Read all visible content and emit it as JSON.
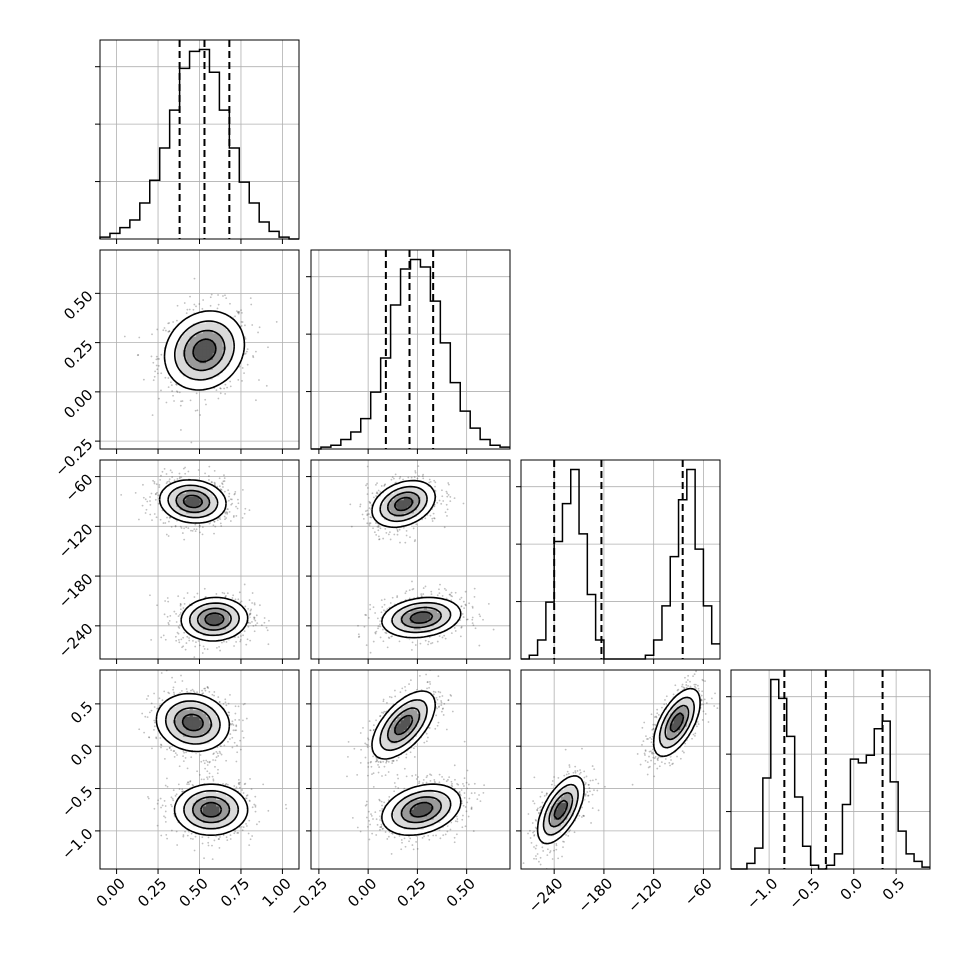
{
  "chart_data": {
    "type": "scatter",
    "title": "",
    "plot_kind": "corner plot (1-D marginal histograms on diagonal, 2-D density contours off-diagonal)",
    "grid": true,
    "parameters": [
      {
        "index": 0,
        "range": [
          -0.1,
          1.1
        ],
        "ticks": [
          0.0,
          0.25,
          0.5,
          0.75,
          1.0
        ],
        "tick_labels": [
          "0.00",
          "0.25",
          "0.50",
          "0.75",
          "1.00"
        ],
        "quantiles": [
          0.38,
          0.53,
          0.68
        ],
        "histogram": [
          1,
          3,
          6,
          10,
          19,
          31,
          48,
          68,
          90,
          99,
          100,
          88,
          68,
          48,
          30,
          19,
          9,
          4,
          1,
          0
        ]
      },
      {
        "index": 1,
        "range": [
          -0.29,
          0.72
        ],
        "ticks": [
          -0.25,
          0.0,
          0.25,
          0.5
        ],
        "tick_labels": [
          "−0.25",
          "0.00",
          "0.25",
          "0.50"
        ],
        "quantiles": [
          0.09,
          0.21,
          0.33
        ],
        "histogram": [
          0,
          1,
          2,
          5,
          9,
          16,
          30,
          48,
          76,
          95,
          100,
          96,
          78,
          56,
          35,
          20,
          11,
          5,
          2,
          1
        ]
      },
      {
        "index": 2,
        "range": [
          -280,
          -40
        ],
        "ticks": [
          -240,
          -180,
          -120,
          -60
        ],
        "tick_labels": [
          "−240",
          "−180",
          "−120",
          "−60"
        ],
        "quantiles": [
          -240,
          -183,
          -85
        ],
        "histogram": [
          0,
          2,
          10,
          30,
          62,
          82,
          100,
          66,
          34,
          10,
          0,
          0,
          0,
          0,
          0,
          2,
          10,
          28,
          54,
          84,
          100,
          58,
          28,
          8
        ]
      },
      {
        "index": 3,
        "range": [
          -1.45,
          0.9
        ],
        "ticks": [
          -1.0,
          -0.5,
          0.0,
          0.5
        ],
        "tick_labels": [
          "−1.0",
          "−0.5",
          "0.0",
          "0.5"
        ],
        "quantiles": [
          -0.82,
          -0.33,
          0.34
        ],
        "histogram": [
          0,
          0,
          3,
          11,
          48,
          100,
          90,
          70,
          38,
          12,
          2,
          0,
          2,
          8,
          34,
          58,
          56,
          60,
          74,
          78,
          46,
          20,
          8,
          4,
          1
        ]
      }
    ],
    "y_axis_ticks": {
      "1": {
        "ticks": [
          -0.25,
          0.0,
          0.25,
          0.5
        ],
        "labels": [
          "−0.25",
          "0.00",
          "0.25",
          "0.50"
        ]
      },
      "2": {
        "ticks": [
          -240,
          -180,
          -120,
          -60
        ],
        "labels": [
          "−240",
          "−180",
          "−120",
          "−60"
        ]
      },
      "3": {
        "ticks": [
          -1.0,
          -0.5,
          0.0,
          0.5
        ],
        "labels": [
          "−1.0",
          "−0.5",
          "0.0",
          "0.5"
        ]
      }
    },
    "pairs": [
      {
        "x": 0,
        "y": 1,
        "modes": [
          {
            "center": [
              0.53,
              0.21
            ],
            "sd": [
              0.12,
              0.1
            ],
            "rho": 0.15,
            "weight": 1.0
          }
        ]
      },
      {
        "x": 0,
        "y": 2,
        "modes": [
          {
            "center": [
              0.46,
              -90
            ],
            "sd": [
              0.1,
              13
            ],
            "rho": -0.1,
            "weight": 0.5
          },
          {
            "center": [
              0.59,
              -232
            ],
            "sd": [
              0.1,
              13
            ],
            "rho": 0.05,
            "weight": 0.5
          }
        ]
      },
      {
        "x": 1,
        "y": 2,
        "modes": [
          {
            "center": [
              0.18,
              -93
            ],
            "sd": [
              0.08,
              14
            ],
            "rho": 0.3,
            "weight": 0.5
          },
          {
            "center": [
              0.27,
              -230
            ],
            "sd": [
              0.1,
              12
            ],
            "rho": 0.2,
            "weight": 0.5
          }
        ]
      },
      {
        "x": 0,
        "y": 3,
        "modes": [
          {
            "center": [
              0.46,
              0.28
            ],
            "sd": [
              0.11,
              0.17
            ],
            "rho": -0.1,
            "weight": 0.5
          },
          {
            "center": [
              0.57,
              -0.75
            ],
            "sd": [
              0.11,
              0.15
            ],
            "rho": 0.0,
            "weight": 0.5
          }
        ]
      },
      {
        "x": 1,
        "y": 3,
        "modes": [
          {
            "center": [
              0.18,
              0.25
            ],
            "sd": [
              0.08,
              0.2
            ],
            "rho": 0.6,
            "weight": 0.5
          },
          {
            "center": [
              0.27,
              -0.75
            ],
            "sd": [
              0.1,
              0.15
            ],
            "rho": 0.3,
            "weight": 0.5
          }
        ]
      },
      {
        "x": 2,
        "y": 3,
        "modes": [
          {
            "center": [
              -92,
              0.28
            ],
            "sd": [
              14,
              0.2
            ],
            "rho": 0.6,
            "weight": 0.5
          },
          {
            "center": [
              -232,
              -0.75
            ],
            "sd": [
              14,
              0.2
            ],
            "rho": 0.6,
            "weight": 0.5
          }
        ]
      }
    ]
  }
}
